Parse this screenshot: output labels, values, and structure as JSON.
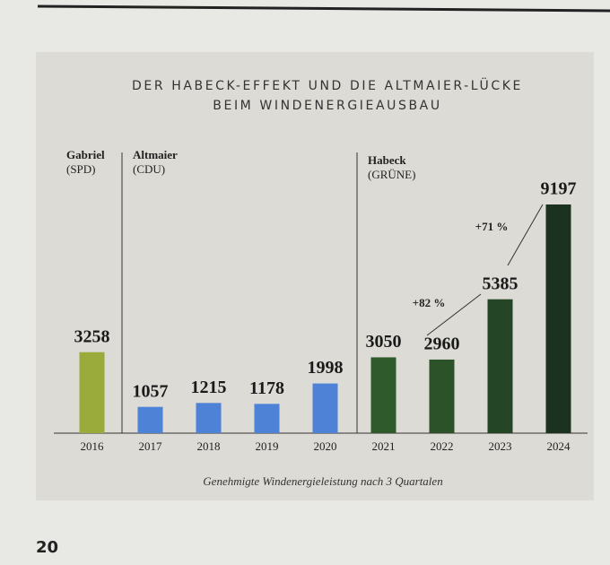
{
  "chart_data": {
    "type": "bar",
    "title": [
      "DER HABECK-EFFEKT UND DIE ALTMAIER-LÜCKE",
      "BEIM WINDENERGIEAUSBAU"
    ],
    "caption": "Genehmigte Windenergieleistung nach 3 Quartalen",
    "categories": [
      "2016",
      "2017",
      "2018",
      "2019",
      "2020",
      "2021",
      "2022",
      "2023",
      "2024"
    ],
    "values": [
      3258,
      1057,
      1215,
      1178,
      1998,
      3050,
      2960,
      5385,
      9197
    ],
    "colors": [
      "#9aab3c",
      "#4d82d6",
      "#4d82d6",
      "#4d82d6",
      "#4d82d6",
      "#2e5a2c",
      "#2b5229",
      "#244626",
      "#1b3220"
    ],
    "periods": [
      {
        "name": "Gabriel",
        "party": "(SPD)"
      },
      {
        "name": "Altmaier",
        "party": "(CDU)"
      },
      {
        "name": "Habeck",
        "party": "(GRÜNE)"
      }
    ],
    "annotations": [
      "+82 %",
      "+71 %"
    ]
  },
  "page_number": "20"
}
